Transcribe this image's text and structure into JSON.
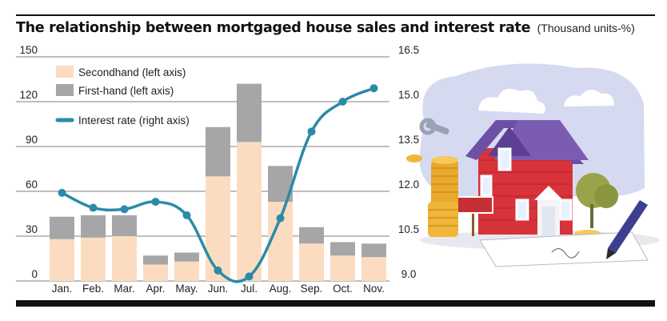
{
  "title": "The relationship between mortgaged house sales and interest rate",
  "unit": "(Thousand units-%)",
  "colors": {
    "secondhand": "#fcdcc0",
    "firsthand": "#a6a6a8",
    "interest": "#2a8ba8",
    "grid": "#555555"
  },
  "chart_data": {
    "type": "bar",
    "stacked": true,
    "categories": [
      "Jan.",
      "Feb.",
      "Mar.",
      "Apr.",
      "May.",
      "Jun.",
      "Jul.",
      "Aug.",
      "Sep.",
      "Oct.",
      "Nov."
    ],
    "series": [
      {
        "name": "Secondhand (left axis)",
        "axis": "left",
        "values": [
          28,
          29,
          30,
          11,
          13,
          70,
          93,
          53,
          25,
          17,
          16
        ]
      },
      {
        "name": "First-hand (left axis)",
        "axis": "left",
        "values": [
          15,
          15,
          14,
          6,
          6,
          33,
          39,
          24,
          11,
          9,
          9
        ]
      },
      {
        "name": "Interest rate (right axis)",
        "axis": "right",
        "type": "line",
        "values": [
          11.95,
          11.45,
          11.4,
          11.65,
          11.2,
          9.35,
          9.15,
          11.1,
          14.0,
          15.0,
          15.45
        ]
      }
    ],
    "y_left": {
      "min": 0,
      "max": 150,
      "ticks": [
        "0",
        "30",
        "60",
        "90",
        "120",
        "150"
      ]
    },
    "y_right": {
      "min": 9.0,
      "max": 16.5,
      "ticks": [
        "9.0",
        "10.5",
        "12.0",
        "13.5",
        "15.0",
        "16.5"
      ]
    },
    "grid": true,
    "legend": "top-left"
  }
}
